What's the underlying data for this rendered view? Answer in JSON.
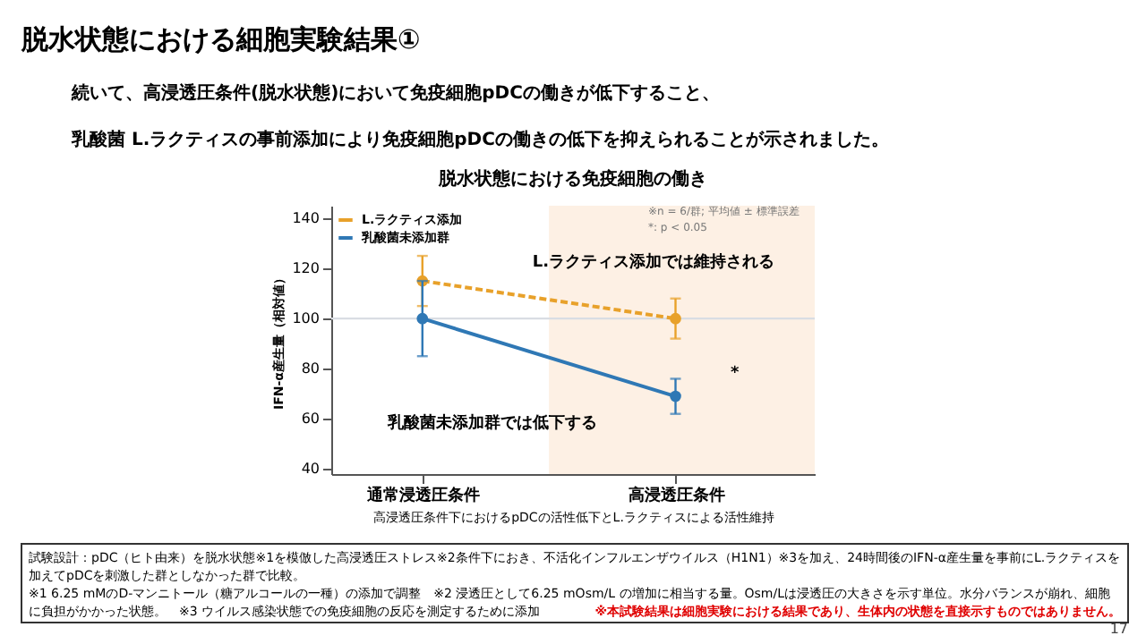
{
  "chart_data": {
    "type": "line",
    "title": "脱水状態における細胞実験結果①",
    "subtitle": "続いて、高浸透圧条件(脱水状態)において免疫細胞pDCの働きが低下すること、",
    "categories": [
      "通常浸透圧条件",
      "高浸透圧条件"
    ],
    "series": [
      {
        "name": "L.ラクティス添加",
        "color": "#e8a12a",
        "values": [
          115,
          100
        ],
        "errors": [
          10,
          8
        ],
        "line_style": "dashed"
      },
      {
        "name": "乳酸菌未添加群",
        "color": "#2f78b5",
        "values": [
          100,
          69
        ],
        "errors": [
          15,
          7
        ],
        "line_style": "solid"
      }
    ],
    "xlabel": "高浸透圧条件下におけるpDCの活性低下とL.ラクティスによる活性維持",
    "ylabel": "IFN-α産生量（相対値）",
    "ylim": [
      38,
      145
    ],
    "yticks": [
      40,
      60,
      80,
      100,
      120,
      140
    ],
    "marker": "circle",
    "grid": false,
    "legend": "top left",
    "ref_lines": [
      {
        "axis": "y",
        "value": 100,
        "color": "#d9dde3"
      }
    ],
    "bands": [
      {
        "axis": "x",
        "from": "高浸透圧条件",
        "to": "高浸透圧条件",
        "color": "#fdf0e4"
      }
    ],
    "annotations": [
      "乳酸菌 L.ラクティスの事前添加により免疫細胞pDCの働きの低下を抑えられることが示されました。",
      "脱水状態における免疫細胞の働き",
      "※n = 6/群; 平均値 ± 標準誤差",
      "*: p < 0.05",
      "L.ラクティス添加では維持される",
      "乳酸菌未添加群では低下する",
      "*",
      "試験設計：pDC（ヒト由来）を脱水状態※1を模倣した高浸透圧ストレス※2条件下におき、不活化インフルエンザウイルス（H1N1）※3を加え、24時間後のIFN-α産生量を事前にL.ラクティスを",
      "加えてpDCを刺激した群としなかった群で比較。",
      "※1 6.25 mMのD-マンニトール（糖アルコールの一種）の添加で調整　※2 浸透圧として6.25 mOsm/L の増加に相当する量。Osm/Lは浸透圧の大きさを示す単位。水分バランスが崩れ、細胞",
      "に負担がかかった状態。　※3 ウイルス感染状態での免疫細胞の反応を測定するために添加",
      "※本試験結果は細胞実験における結果であり、生体内の状態を直接示すものではありません。",
      "17"
    ]
  }
}
